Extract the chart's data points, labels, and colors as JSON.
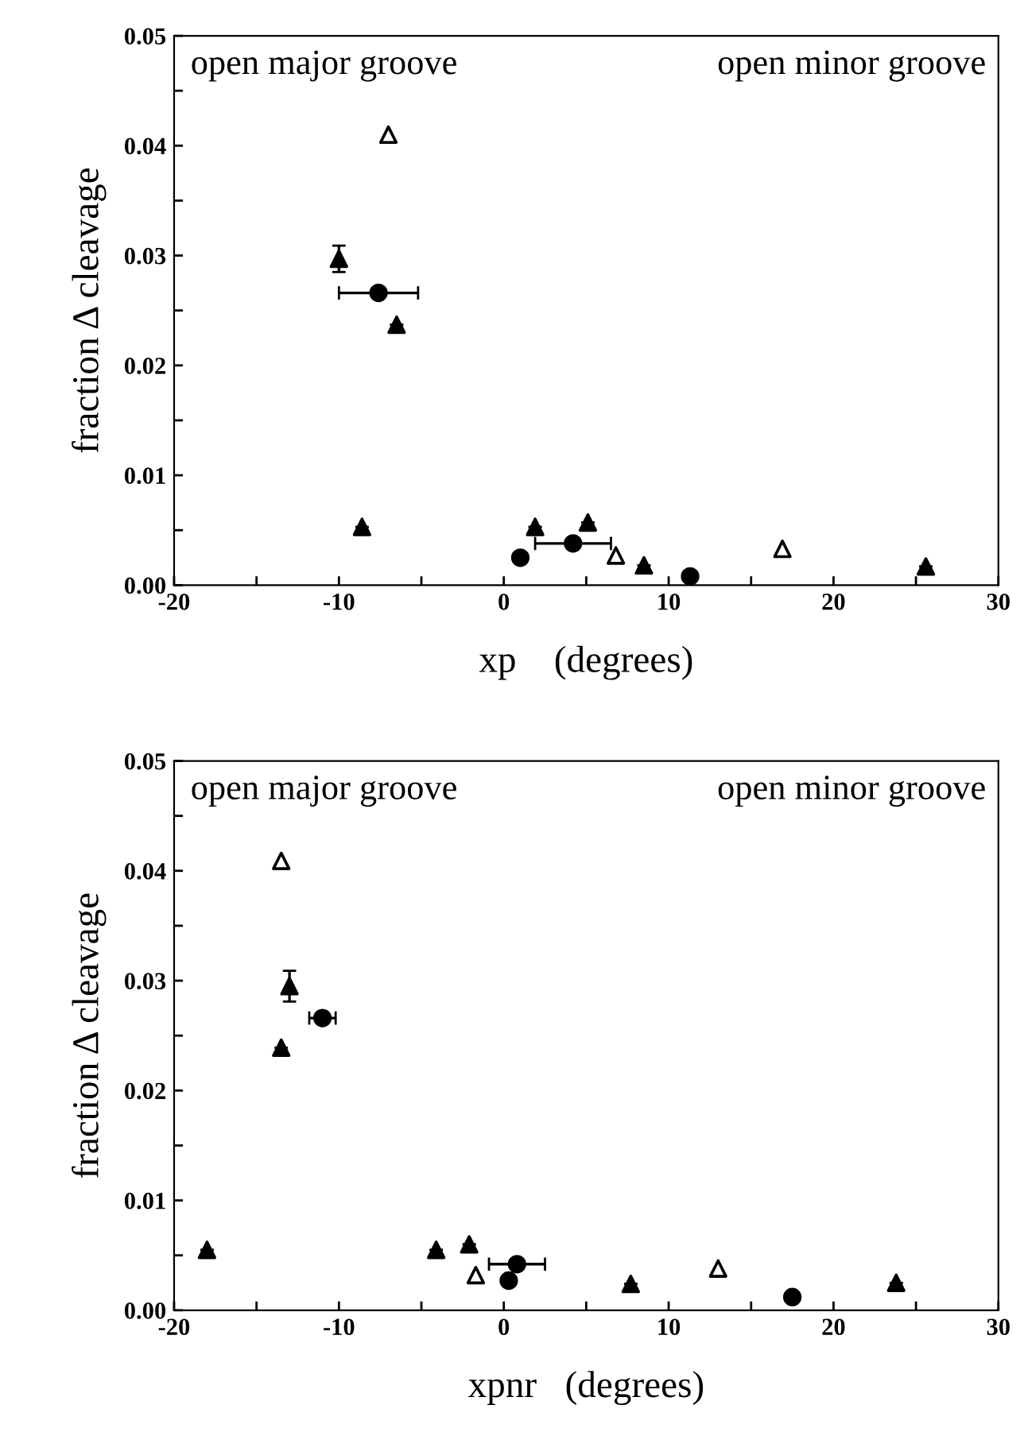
{
  "chart_data": [
    {
      "type": "scatter",
      "xlabel": "xp    (degrees)",
      "ylabel": "fraction Δ cleavage",
      "annotations": [
        "open major groove",
        "open minor groove"
      ],
      "xlim": [
        -20,
        30
      ],
      "ylim": [
        0,
        0.05
      ],
      "xticks": [
        -20,
        {
          "value": -15,
          "label": null
        },
        -10,
        {
          "value": -5,
          "label": null
        },
        0,
        {
          "value": 5,
          "label": null
        },
        10,
        {
          "value": 15,
          "label": null
        },
        20,
        {
          "value": 25,
          "label": null
        },
        30
      ],
      "yticks": [
        {
          "value": 0,
          "label": "0.00"
        },
        {
          "value": 0.005,
          "label": null
        },
        {
          "value": 0.01,
          "label": "0.01"
        },
        {
          "value": 0.015,
          "label": null
        },
        {
          "value": 0.02,
          "label": "0.02"
        },
        {
          "value": 0.025,
          "label": null
        },
        {
          "value": 0.03,
          "label": "0.03"
        },
        {
          "value": 0.035,
          "label": null
        },
        {
          "value": 0.04,
          "label": "0.04"
        },
        {
          "value": 0.045,
          "label": null
        },
        {
          "value": 0.05,
          "label": "0.05"
        }
      ],
      "grid": false,
      "series": [
        {
          "color": "#000000",
          "marker": "triangle",
          "x": [
            -10.0,
            -6.5,
            -8.6,
            1.9,
            5.1,
            8.5,
            25.6
          ],
          "values": [
            0.0297,
            0.0237,
            0.0053,
            0.0053,
            0.0057,
            0.0018,
            0.0017
          ],
          "errors": [
            0.0012,
            null,
            null,
            null,
            null,
            null,
            null
          ]
        },
        {
          "color": "#ffffff",
          "marker": "triangle",
          "x": [
            -7.0,
            6.8,
            16.9
          ],
          "values": [
            0.041,
            0.0027,
            0.0033
          ]
        },
        {
          "color": "#000000",
          "marker": "circle",
          "x": [
            -7.6,
            1.0,
            4.2,
            11.3
          ],
          "values": [
            0.0266,
            0.0025,
            0.0038,
            0.0008
          ],
          "xerrors": [
            2.4,
            null,
            2.3,
            null
          ]
        }
      ]
    },
    {
      "type": "scatter",
      "xlabel": "xpnr   (degrees)",
      "ylabel": "fraction Δ cleavage",
      "annotations": [
        "open major groove",
        "open minor groove"
      ],
      "xlim": [
        -20,
        30
      ],
      "ylim": [
        0,
        0.05
      ],
      "xticks": [
        -20,
        {
          "value": -15,
          "label": null
        },
        -10,
        {
          "value": -5,
          "label": null
        },
        0,
        {
          "value": 5,
          "label": null
        },
        10,
        {
          "value": 15,
          "label": null
        },
        20,
        {
          "value": 25,
          "label": null
        },
        30
      ],
      "yticks": [
        {
          "value": 0,
          "label": "0.00"
        },
        {
          "value": 0.005,
          "label": null
        },
        {
          "value": 0.01,
          "label": "0.01"
        },
        {
          "value": 0.015,
          "label": null
        },
        {
          "value": 0.02,
          "label": "0.02"
        },
        {
          "value": 0.025,
          "label": null
        },
        {
          "value": 0.03,
          "label": "0.03"
        },
        {
          "value": 0.035,
          "label": null
        },
        {
          "value": 0.04,
          "label": "0.04"
        },
        {
          "value": 0.045,
          "label": null
        },
        {
          "value": 0.05,
          "label": "0.05"
        }
      ],
      "grid": false,
      "series": [
        {
          "color": "#000000",
          "marker": "triangle",
          "x": [
            -13.0,
            -13.5,
            -18.0,
            -4.1,
            -2.1,
            7.7,
            23.8
          ],
          "values": [
            0.0295,
            0.0239,
            0.0055,
            0.0055,
            0.006,
            0.0024,
            0.0025
          ],
          "errors": [
            0.0014,
            null,
            null,
            null,
            null,
            null,
            null
          ]
        },
        {
          "color": "#ffffff",
          "marker": "triangle",
          "x": [
            -13.5,
            -1.7,
            13.0
          ],
          "values": [
            0.0409,
            0.0032,
            0.0038
          ]
        },
        {
          "color": "#000000",
          "marker": "circle",
          "x": [
            -11.0,
            0.3,
            0.8,
            17.5
          ],
          "values": [
            0.0266,
            0.0027,
            0.0042,
            0.0012
          ],
          "xerrors": [
            0.8,
            null,
            1.7,
            null
          ]
        }
      ]
    }
  ]
}
